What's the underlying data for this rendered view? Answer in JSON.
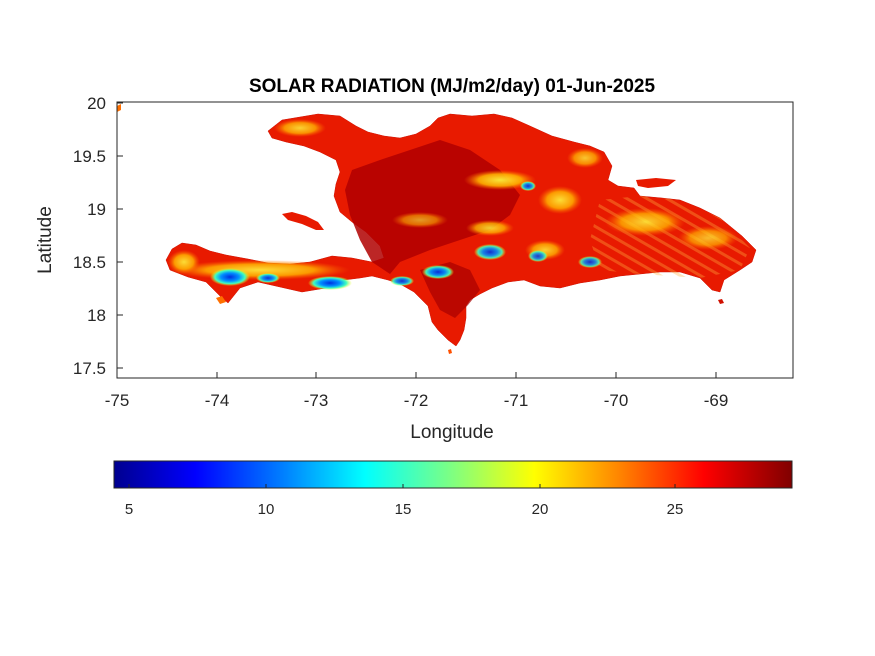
{
  "map": {
    "title": "SOLAR RADIATION (MJ/m2/day) 01-Jun-2025",
    "xlabel": "Longitude",
    "ylabel": "Latitude",
    "x_ticks": [
      "-75",
      "-74",
      "-73",
      "-72",
      "-71",
      "-70",
      "-69"
    ],
    "y_ticks": [
      "20",
      "19.5",
      "19",
      "18.5",
      "18",
      "17.5"
    ],
    "x_range": [
      -75,
      -68.22
    ],
    "y_range": [
      17.43,
      20.0
    ],
    "colormap": "jet",
    "colorbar": {
      "ticks": [
        "5",
        "10",
        "15",
        "20",
        "25"
      ],
      "range": [
        4.5,
        29.2
      ],
      "colors": [
        "#00008f",
        "#0000ff",
        "#0080ff",
        "#00ffff",
        "#80ff80",
        "#ffff00",
        "#ff8000",
        "#ff0000",
        "#800000"
      ]
    }
  }
}
